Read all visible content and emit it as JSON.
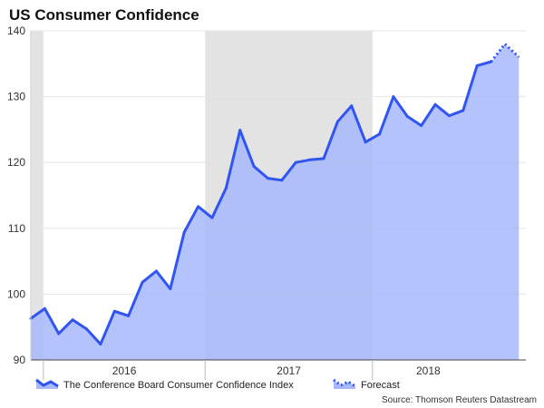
{
  "chart_data": {
    "type": "area",
    "title": "US Consumer Confidence",
    "source": "Source: Thomson Reuters Datastream",
    "ylim": [
      90,
      140
    ],
    "yticks": [
      90,
      100,
      110,
      120,
      130,
      140
    ],
    "xlabels": [
      "2016",
      "2017",
      "2018"
    ],
    "grid": true,
    "legend_placement": "bottom",
    "shaded_years": [
      "2015",
      "2017"
    ],
    "x": [
      "2015-12",
      "2016-01",
      "2016-02",
      "2016-03",
      "2016-04",
      "2016-05",
      "2016-06",
      "2016-07",
      "2016-08",
      "2016-09",
      "2016-10",
      "2016-11",
      "2016-12",
      "2017-01",
      "2017-02",
      "2017-03",
      "2017-04",
      "2017-05",
      "2017-06",
      "2017-07",
      "2017-08",
      "2017-09",
      "2017-10",
      "2017-11",
      "2017-12",
      "2018-01",
      "2018-02",
      "2018-03",
      "2018-04",
      "2018-05",
      "2018-06",
      "2018-07",
      "2018-08",
      "2018-09"
    ],
    "series": [
      {
        "name": "The Conference Board Consumer Confidence Index",
        "values": [
          96.3,
          97.8,
          94.0,
          96.1,
          94.7,
          92.4,
          97.4,
          96.7,
          101.8,
          103.5,
          100.8,
          109.4,
          113.3,
          111.6,
          116.1,
          124.9,
          119.4,
          117.6,
          117.3,
          120.0,
          120.4,
          120.6,
          126.2,
          128.6,
          123.1,
          124.3,
          130.0,
          127.0,
          125.6,
          128.8,
          127.1,
          127.9,
          134.7,
          135.3
        ],
        "color": "#3055f0"
      },
      {
        "name": "Forecast",
        "x": [
          "2018-10",
          "2018-11"
        ],
        "values": [
          138.0,
          136.0
        ],
        "color": "#3055f0"
      }
    ],
    "area_color": "#a8b8fb",
    "band_color": "#e3e3e3"
  }
}
